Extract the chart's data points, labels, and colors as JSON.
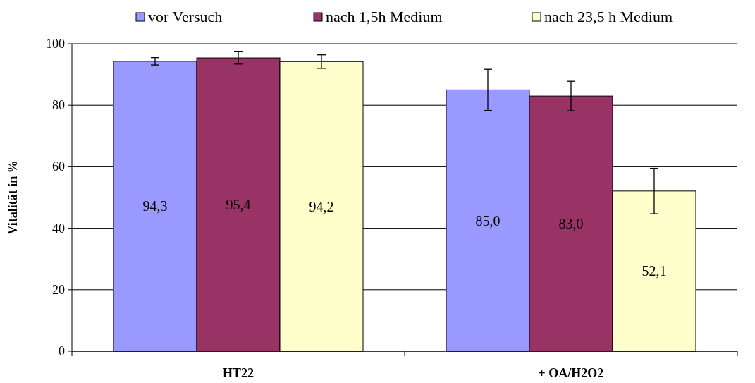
{
  "chart_data": {
    "type": "bar",
    "categories": [
      "HT22",
      "+ OA/H2O2"
    ],
    "ylabel": "Vitalität in %",
    "ylim": [
      0,
      100
    ],
    "yticks": [
      0,
      20,
      40,
      60,
      80,
      100
    ],
    "grid": "y",
    "legend": "top",
    "series": [
      {
        "name": "vor Versuch",
        "color": "#9999ff",
        "values": [
          94.3,
          85.0
        ],
        "errors": [
          1.2,
          6.7
        ],
        "value_labels": [
          "94,3",
          "85,0"
        ]
      },
      {
        "name": "nach 1,5h Medium",
        "color": "#993366",
        "values": [
          95.4,
          83.0
        ],
        "errors": [
          2.0,
          4.8
        ],
        "value_labels": [
          "95,4",
          "83,0"
        ]
      },
      {
        "name": "nach 23,5 h Medium",
        "color": "#ffffcc",
        "values": [
          94.2,
          52.1
        ],
        "errors": [
          2.2,
          7.4
        ],
        "value_labels": [
          "94,2",
          "52,1"
        ]
      }
    ]
  }
}
